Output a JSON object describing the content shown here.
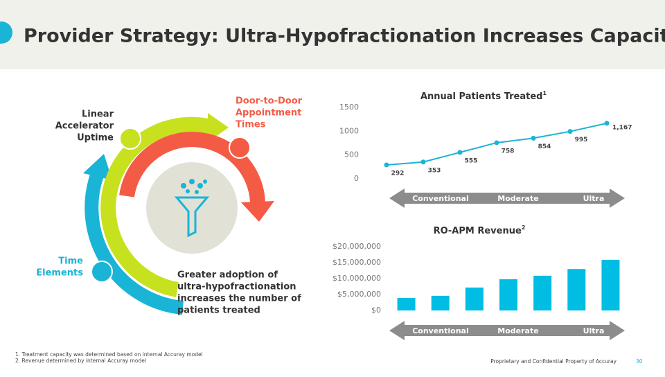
{
  "header": {
    "title": "Provider Strategy: Ultra-Hypofractionation Increases Capacity"
  },
  "diagram": {
    "uptime": [
      "Linear",
      "Accelerator",
      "Uptime"
    ],
    "door": [
      "Door-to-Door",
      "Appointment",
      "Times"
    ],
    "time": [
      "Time",
      "Elements"
    ],
    "caption": [
      "Greater adoption of",
      "ultra-hypofractionation",
      "increases the number of",
      "patients treated"
    ]
  },
  "chart_data": [
    {
      "type": "line",
      "title": "Annual Patients Treated",
      "title_sup": "1",
      "categories": [
        null,
        null,
        null,
        null,
        null,
        null,
        null
      ],
      "values": [
        292,
        353,
        555,
        758,
        854,
        995,
        1167
      ],
      "value_labels": [
        "292",
        "353",
        "555",
        "758",
        "854",
        "995",
        "1,167"
      ],
      "color": "#1ab4d7",
      "ylim": [
        0,
        1500
      ],
      "yticks": [
        0,
        500,
        1000,
        1500
      ],
      "grid": false,
      "annotations": [
        "Conventional",
        "Moderate",
        "Ultra"
      ]
    },
    {
      "type": "bar",
      "title": "RO-APM Revenue",
      "title_sup": "2",
      "categories": [
        null,
        null,
        null,
        null,
        null,
        null,
        null
      ],
      "values": [
        3900000,
        4600000,
        7200000,
        9800000,
        10900000,
        13000000,
        15900000
      ],
      "color": "#00bde3",
      "ylim": [
        0,
        20000000
      ],
      "yticks": [
        {
          "value": 0,
          "label": "$0"
        },
        {
          "value": 5000000,
          "label": "$5,000,000"
        },
        {
          "value": 10000000,
          "label": "$10,000,000"
        },
        {
          "value": 15000000,
          "label": "$15,000,000"
        },
        {
          "value": 20000000,
          "label": "$20,000,000"
        }
      ],
      "grid": false,
      "annotations": [
        "Conventional",
        "Moderate",
        "Ultra"
      ]
    }
  ],
  "footnotes": [
    "1.  Treatment capacity was determined based on internal Accuray model",
    "2. Revenue determined by internal Accuray model"
  ],
  "footer": {
    "text": "Proprietary and Confidential Property of Accuray",
    "page": "30"
  }
}
